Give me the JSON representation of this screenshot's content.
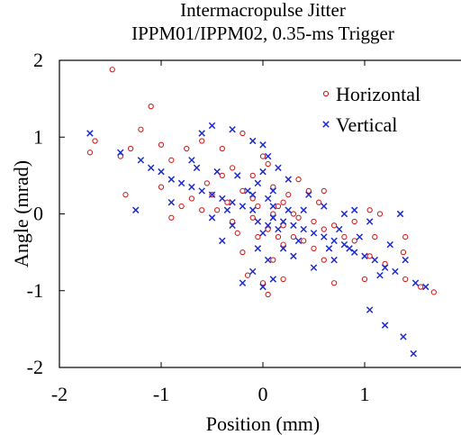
{
  "chart_data": {
    "type": "scatter",
    "title": "Intermacropulse Jitter",
    "subtitle": "IPPM01/IPPM02, 0.35-ms Trigger",
    "xlabel": "Position (mm)",
    "ylabel": "Angle (mrad)",
    "xlim": [
      -2,
      2
    ],
    "ylim": [
      -2,
      2
    ],
    "xticks": [
      -2,
      -1,
      0,
      1,
      2
    ],
    "yticks": [
      -2,
      -1,
      0,
      1,
      2
    ],
    "xtick_labels": [
      "-2",
      "-1",
      "0",
      "1",
      "2"
    ],
    "ytick_labels": [
      "-2",
      "-1",
      "0",
      "1",
      "2"
    ],
    "grid": false,
    "legend": "top-right",
    "series": [
      {
        "name": "Horizontal",
        "marker": "circle",
        "color": "#d42020",
        "points": [
          [
            -1.48,
            1.88
          ],
          [
            -1.65,
            0.95
          ],
          [
            -1.7,
            0.8
          ],
          [
            -1.1,
            1.4
          ],
          [
            -1.2,
            1.1
          ],
          [
            -1.3,
            0.85
          ],
          [
            -1.4,
            0.75
          ],
          [
            -1.35,
            0.25
          ],
          [
            -1.0,
            0.9
          ],
          [
            -0.9,
            0.7
          ],
          [
            -0.75,
            0.85
          ],
          [
            -0.6,
            0.95
          ],
          [
            -0.4,
            0.85
          ],
          [
            -0.2,
            1.05
          ],
          [
            -1.0,
            0.35
          ],
          [
            -0.8,
            0.1
          ],
          [
            -0.7,
            0.2
          ],
          [
            -0.5,
            0.25
          ],
          [
            -0.6,
            0.05
          ],
          [
            -0.9,
            -0.05
          ],
          [
            -0.4,
            0.5
          ],
          [
            -0.3,
            0.6
          ],
          [
            -0.1,
            0.5
          ],
          [
            0.0,
            0.75
          ],
          [
            0.05,
            0.65
          ],
          [
            -0.2,
            0.3
          ],
          [
            -0.1,
            0.2
          ],
          [
            0.1,
            0.35
          ],
          [
            0.2,
            0.15
          ],
          [
            0.3,
            0.0
          ],
          [
            0.35,
            -0.05
          ],
          [
            0.5,
            -0.1
          ],
          [
            0.6,
            -0.2
          ],
          [
            0.7,
            -0.15
          ],
          [
            0.8,
            -0.3
          ],
          [
            0.9,
            -0.35
          ],
          [
            1.05,
            -0.55
          ],
          [
            1.2,
            -0.65
          ],
          [
            1.4,
            -0.85
          ],
          [
            1.55,
            -0.95
          ],
          [
            1.68,
            -1.02
          ],
          [
            1.1,
            -0.3
          ],
          [
            0.9,
            -0.1
          ],
          [
            1.4,
            -0.3
          ],
          [
            1.38,
            -0.5
          ],
          [
            1.0,
            -0.85
          ],
          [
            0.6,
            -0.6
          ],
          [
            0.5,
            -0.45
          ],
          [
            0.4,
            -0.35
          ],
          [
            0.3,
            -0.3
          ],
          [
            0.2,
            -0.4
          ],
          [
            0.1,
            -0.6
          ],
          [
            -0.2,
            -0.5
          ],
          [
            -0.15,
            -0.8
          ],
          [
            0.0,
            -0.9
          ],
          [
            0.05,
            -1.05
          ],
          [
            0.2,
            -0.85
          ],
          [
            0.7,
            -0.9
          ],
          [
            1.15,
            0.0
          ],
          [
            1.05,
            0.05
          ],
          [
            -0.05,
            -0.3
          ],
          [
            -0.3,
            -0.1
          ],
          [
            -0.45,
            0.05
          ],
          [
            0.15,
            0.1
          ],
          [
            0.25,
            0.25
          ],
          [
            0.45,
            0.3
          ],
          [
            0.55,
            0.15
          ],
          [
            -0.55,
            0.4
          ],
          [
            -0.25,
            -0.25
          ],
          [
            0.35,
            0.45
          ],
          [
            0.05,
            -0.2
          ],
          [
            -0.1,
            -0.05
          ],
          [
            0.1,
            0.0
          ],
          [
            -0.05,
            0.1
          ],
          [
            0.2,
            -0.15
          ],
          [
            -0.35,
            0.15
          ],
          [
            0.15,
            -0.3
          ],
          [
            0.6,
            0.3
          ]
        ]
      },
      {
        "name": "Vertical",
        "marker": "x",
        "color": "#1f2ccd",
        "points": [
          [
            -1.7,
            1.05
          ],
          [
            -1.4,
            0.8
          ],
          [
            -1.2,
            0.7
          ],
          [
            -1.1,
            0.6
          ],
          [
            -1.0,
            0.55
          ],
          [
            -0.9,
            0.45
          ],
          [
            -0.8,
            0.4
          ],
          [
            -0.7,
            0.35
          ],
          [
            -0.6,
            0.3
          ],
          [
            -0.5,
            0.25
          ],
          [
            -0.4,
            0.2
          ],
          [
            -0.3,
            0.15
          ],
          [
            -0.2,
            0.1
          ],
          [
            -0.1,
            0.05
          ],
          [
            0.1,
            -0.05
          ],
          [
            0.2,
            -0.1
          ],
          [
            0.3,
            -0.15
          ],
          [
            0.4,
            -0.2
          ],
          [
            0.5,
            -0.25
          ],
          [
            0.6,
            -0.3
          ],
          [
            0.7,
            -0.35
          ],
          [
            0.8,
            -0.4
          ],
          [
            0.9,
            -0.5
          ],
          [
            1.0,
            -0.55
          ],
          [
            1.1,
            -0.6
          ],
          [
            1.2,
            -0.7
          ],
          [
            1.3,
            -0.75
          ],
          [
            1.5,
            -0.9
          ],
          [
            1.6,
            -0.95
          ],
          [
            1.05,
            -1.25
          ],
          [
            1.2,
            -1.45
          ],
          [
            1.38,
            -1.6
          ],
          [
            1.48,
            -1.82
          ],
          [
            -1.25,
            0.05
          ],
          [
            -0.9,
            0.15
          ],
          [
            -0.7,
            0.7
          ],
          [
            -0.6,
            1.05
          ],
          [
            -0.5,
            1.15
          ],
          [
            -0.3,
            1.1
          ],
          [
            -0.1,
            0.95
          ],
          [
            0.0,
            0.9
          ],
          [
            0.05,
            0.75
          ],
          [
            0.0,
            0.55
          ],
          [
            -0.05,
            0.4
          ],
          [
            0.1,
            0.3
          ],
          [
            0.05,
            0.2
          ],
          [
            0.0,
            -0.25
          ],
          [
            -0.05,
            -0.45
          ],
          [
            0.05,
            -0.6
          ],
          [
            -0.1,
            -0.75
          ],
          [
            0.0,
            -0.95
          ],
          [
            -0.2,
            -0.9
          ],
          [
            0.1,
            -0.85
          ],
          [
            0.3,
            -0.55
          ],
          [
            0.5,
            -0.7
          ],
          [
            0.2,
            -0.45
          ],
          [
            -0.4,
            -0.35
          ],
          [
            -0.3,
            -0.15
          ],
          [
            -0.5,
            -0.05
          ],
          [
            0.4,
            0.05
          ],
          [
            0.6,
            0.1
          ],
          [
            0.8,
            0.0
          ],
          [
            0.9,
            0.05
          ],
          [
            1.35,
            0.0
          ],
          [
            1.05,
            -0.1
          ],
          [
            0.7,
            -0.6
          ],
          [
            1.25,
            -0.4
          ],
          [
            0.95,
            -0.3
          ],
          [
            0.85,
            -0.45
          ],
          [
            -0.15,
            0.3
          ],
          [
            -0.25,
            0.5
          ],
          [
            0.15,
            0.6
          ],
          [
            0.25,
            0.45
          ],
          [
            0.45,
            0.25
          ],
          [
            -0.45,
            0.55
          ],
          [
            -0.65,
            0.6
          ],
          [
            -0.35,
            0.05
          ],
          [
            0.35,
            -0.35
          ],
          [
            -0.05,
            -0.1
          ],
          [
            0.1,
            0.1
          ],
          [
            0.05,
            -0.15
          ],
          [
            -0.1,
            0.25
          ],
          [
            0.15,
            -0.2
          ],
          [
            0.25,
            0.05
          ],
          [
            0.65,
            -0.45
          ],
          [
            0.75,
            -0.2
          ],
          [
            1.15,
            -0.8
          ],
          [
            1.4,
            -0.6
          ]
        ]
      }
    ]
  }
}
